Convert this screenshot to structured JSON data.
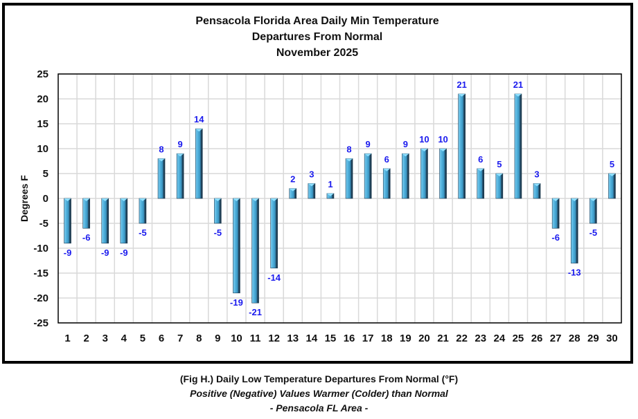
{
  "chart_data": {
    "type": "bar",
    "title": [
      "Pensacola Florida Area Daily Min Temperature",
      "Departures From Normal",
      "November 2025"
    ],
    "xlabel": "",
    "ylabel": "Degrees F",
    "ylim": [
      -25,
      25
    ],
    "yticks": [
      25,
      20,
      15,
      10,
      5,
      0,
      -5,
      -10,
      -15,
      -20,
      -25
    ],
    "grid": true,
    "legend": "none",
    "categories": [
      "1",
      "2",
      "3",
      "4",
      "5",
      "6",
      "7",
      "8",
      "9",
      "10",
      "11",
      "12",
      "13",
      "14",
      "15",
      "16",
      "17",
      "18",
      "19",
      "20",
      "21",
      "22",
      "23",
      "24",
      "25",
      "26",
      "27",
      "28",
      "29",
      "30"
    ],
    "values": [
      -9,
      -6,
      -9,
      -9,
      -5,
      8,
      9,
      14,
      -5,
      -19,
      -21,
      -14,
      2,
      3,
      1,
      8,
      9,
      6,
      9,
      10,
      10,
      21,
      6,
      5,
      21,
      3,
      -6,
      -13,
      -5,
      5
    ],
    "colors": {
      "bar_light": "#5ab8e0",
      "bar_mid": "#3a94c0",
      "bar_dark": "#1e3c55",
      "bar_cap": "#8fe0ff",
      "label": "#1a1aee",
      "grid": "#d9d9d9"
    }
  },
  "caption": {
    "line1": "(Fig H.) Daily Low Temperature Departures From Normal (°F)",
    "line2": "Positive (Negative) Values Warmer (Colder) than Normal",
    "line3": "- Pensacola FL Area -"
  }
}
